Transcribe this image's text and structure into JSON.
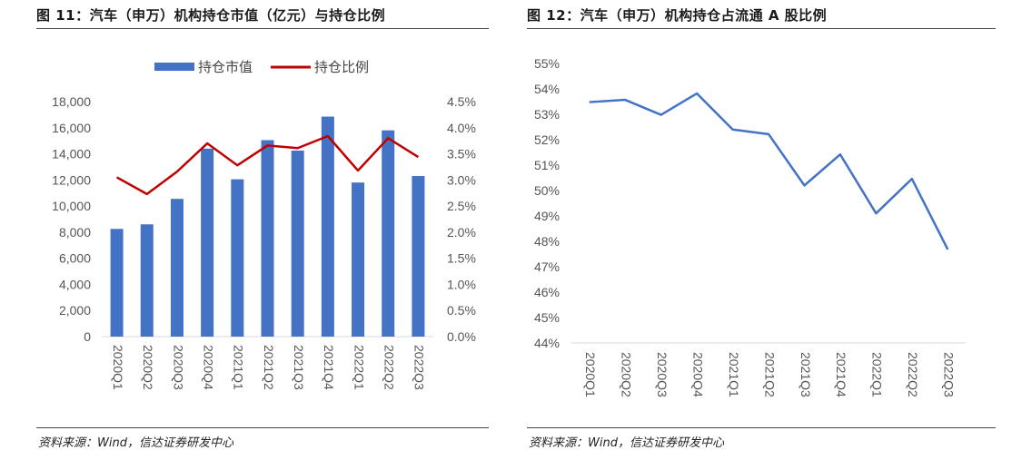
{
  "figures": [
    {
      "title": "图 11：汽车（申万）机构持仓市值（亿元）与持仓比例",
      "source": "资料来源：Wind，信达证券研发中心"
    },
    {
      "title": "图 12：汽车（申万）机构持仓占流通 A 股比例",
      "source": "资料来源：Wind，信达证券研发中心"
    }
  ],
  "colors": {
    "bar": "#4472C4",
    "line_red": "#C00000",
    "line_blue": "#4472C4",
    "axis": "#d9d9d9"
  },
  "chart_data": [
    {
      "type": "bar+line",
      "categories": [
        "2020Q1",
        "2020Q2",
        "2020Q3",
        "2020Q4",
        "2021Q1",
        "2021Q2",
        "2021Q3",
        "2021Q4",
        "2022Q1",
        "2022Q2",
        "2022Q3"
      ],
      "series": [
        {
          "name": "持仓市值",
          "type": "bar",
          "axis": "left",
          "values": [
            8250,
            8600,
            10550,
            14400,
            12050,
            15050,
            14250,
            16850,
            11800,
            15800,
            12300
          ]
        },
        {
          "name": "持仓比例",
          "type": "line",
          "axis": "right",
          "values": [
            3.05,
            2.73,
            3.16,
            3.7,
            3.28,
            3.66,
            3.61,
            3.84,
            3.18,
            3.8,
            3.44
          ]
        }
      ],
      "y_left": {
        "min": 0,
        "max": 18000,
        "step": 2000,
        "tick_labels": [
          "0",
          "2,000",
          "4,000",
          "6,000",
          "8,000",
          "10,000",
          "12,000",
          "14,000",
          "16,000",
          "18,000"
        ]
      },
      "y_right": {
        "min": 0,
        "max": 4.5,
        "step": 0.5,
        "tick_labels": [
          "0.0%",
          "0.5%",
          "1.0%",
          "1.5%",
          "2.0%",
          "2.5%",
          "3.0%",
          "3.5%",
          "4.0%",
          "4.5%"
        ]
      },
      "legend": "top",
      "grid": false
    },
    {
      "type": "line",
      "categories": [
        "2020Q1",
        "2020Q2",
        "2020Q3",
        "2020Q4",
        "2021Q1",
        "2021Q2",
        "2021Q3",
        "2021Q4",
        "2022Q1",
        "2022Q2",
        "2022Q3"
      ],
      "series": [
        {
          "values": [
            53.48,
            53.57,
            52.98,
            53.82,
            52.4,
            52.22,
            50.2,
            51.42,
            49.1,
            50.46,
            47.68
          ]
        }
      ],
      "y": {
        "min": 44,
        "max": 55,
        "step": 1,
        "tick_labels": [
          "44%",
          "45%",
          "46%",
          "47%",
          "48%",
          "49%",
          "50%",
          "51%",
          "52%",
          "53%",
          "54%",
          "55%"
        ]
      },
      "legend": "none",
      "grid": false
    }
  ]
}
